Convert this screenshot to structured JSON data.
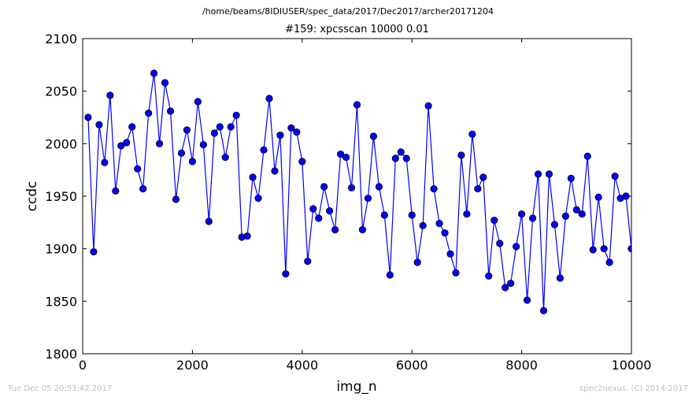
{
  "header": {
    "path": "/home/beams/8IDIUSER/spec_data/2017/Dec2017/archer20171204"
  },
  "footer": {
    "timestamp": "Tue Dec 05 20:53:42 2017",
    "credit": "spec2nexus, (C) 2014-2017"
  },
  "colors": {
    "series": "#0000ff",
    "marker_edge": "#000000"
  },
  "chart_data": {
    "type": "line",
    "title": "#159: xpcsscan 10000 0.01",
    "xlabel": "img_n",
    "ylabel": "ccdc",
    "xlim": [
      0,
      10000
    ],
    "ylim": [
      1800,
      2100
    ],
    "xticks": [
      0,
      2000,
      4000,
      6000,
      8000,
      10000
    ],
    "yticks": [
      1800,
      1850,
      1900,
      1950,
      2000,
      2050,
      2100
    ],
    "grid": false,
    "marker": "circle",
    "series": [
      {
        "x": [
          100,
          200,
          300,
          400,
          500,
          600,
          700,
          800,
          900,
          1000,
          1100,
          1200,
          1300,
          1400,
          1500,
          1600,
          1700,
          1800,
          1900,
          2000,
          2100,
          2200,
          2300,
          2400,
          2500,
          2600,
          2700,
          2800,
          2900,
          3000,
          3100,
          3200,
          3300,
          3400,
          3500,
          3600,
          3700,
          3800,
          3900,
          4000,
          4100,
          4200,
          4300,
          4400,
          4500,
          4600,
          4700,
          4800,
          4900,
          5000,
          5100,
          5200,
          5300,
          5400,
          5500,
          5600,
          5700,
          5800,
          5900,
          6000,
          6100,
          6200,
          6300,
          6400,
          6500,
          6600,
          6700,
          6800,
          6900,
          7000,
          7100,
          7200,
          7300,
          7400,
          7500,
          7600,
          7700,
          7800,
          7900,
          8000,
          8100,
          8200,
          8300,
          8400,
          8500,
          8600,
          8700,
          8800,
          8900,
          9000,
          9100,
          9200,
          9300,
          9400,
          9500,
          9600,
          9700,
          9800,
          9900,
          10000
        ],
        "values": [
          2025,
          1897,
          2018,
          1982,
          2046,
          1955,
          1998,
          2001,
          2016,
          1976,
          1957,
          2029,
          2067,
          2000,
          2058,
          2031,
          1947,
          1991,
          2013,
          1983,
          2040,
          1999,
          1926,
          2010,
          2016,
          1987,
          2016,
          2027,
          1911,
          1912,
          1968,
          1948,
          1994,
          2043,
          1974,
          2008,
          1876,
          2015,
          2011,
          1983,
          1888,
          1938,
          1929,
          1959,
          1936,
          1918,
          1990,
          1987,
          1958,
          2037,
          1918,
          1948,
          2007,
          1959,
          1932,
          1875,
          1986,
          1992,
          1986,
          1932,
          1887,
          1922,
          2036,
          1957,
          1924,
          1915,
          1895,
          1877,
          1989,
          1933,
          2009,
          1957,
          1968,
          1874,
          1927,
          1905,
          1863,
          1867,
          1902,
          1933,
          1851,
          1929,
          1971,
          1841,
          1971,
          1923,
          1872,
          1931,
          1967,
          1937,
          1933,
          1988,
          1899,
          1949,
          1900,
          1887,
          1969,
          1948,
          1950,
          1900
        ]
      }
    ]
  }
}
